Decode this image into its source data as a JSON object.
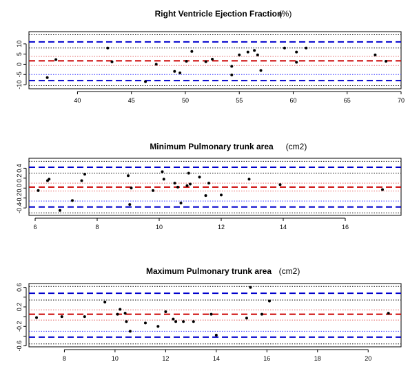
{
  "chart_data": [
    {
      "type": "scatter",
      "title": "Right Ventricle Ejection Fraction",
      "unit": "(%)",
      "xlim": [
        35.5,
        70
      ],
      "ylim": [
        -12,
        16
      ],
      "xticks": [
        40,
        45,
        50,
        55,
        60,
        65,
        70
      ],
      "yticks": [
        -10,
        -5,
        0,
        5,
        10
      ],
      "ytick_labels": [
        "-10",
        "-5",
        "0",
        "5",
        "10"
      ],
      "bias": 1.7,
      "loa": [
        -8.0,
        11.0
      ],
      "bias_ci": [
        -0.6,
        3.9
      ],
      "loa_ci": [
        [
          -10.5,
          -5.0
        ],
        [
          8.0,
          14.5
        ]
      ],
      "points": [
        [
          37.2,
          -6.5
        ],
        [
          38.0,
          2.3
        ],
        [
          42.8,
          8.0
        ],
        [
          43.2,
          1.2
        ],
        [
          46.3,
          -8.5
        ],
        [
          47.3,
          0.0
        ],
        [
          49.0,
          -3.5
        ],
        [
          49.5,
          -4.2
        ],
        [
          50.1,
          1.5
        ],
        [
          50.6,
          6.3
        ],
        [
          51.9,
          1.3
        ],
        [
          52.5,
          2.5
        ],
        [
          54.3,
          -5.2
        ],
        [
          54.3,
          -1.0
        ],
        [
          55.0,
          4.6
        ],
        [
          55.8,
          6.0
        ],
        [
          56.4,
          6.8
        ],
        [
          56.7,
          4.6
        ],
        [
          57.0,
          -3.0
        ],
        [
          59.2,
          8.0
        ],
        [
          60.3,
          6.0
        ],
        [
          60.3,
          1.0
        ],
        [
          61.2,
          8.0
        ],
        [
          67.6,
          4.6
        ],
        [
          68.6,
          1.5
        ]
      ]
    },
    {
      "type": "scatter",
      "title": "Minimum Pulmonary trunk area",
      "unit": "(cm2)",
      "xlim": [
        5.8,
        17.8
      ],
      "ylim": [
        -0.55,
        0.6
      ],
      "xticks": [
        6,
        8,
        10,
        12,
        14,
        16
      ],
      "yticks": [
        -0.4,
        -0.2,
        0.0,
        0.2,
        0.4
      ],
      "ytick_labels": [
        "-0.4",
        "-0.2",
        "0.0",
        "0.2",
        "0.4"
      ],
      "bias": 0.02,
      "loa": [
        -0.38,
        0.42
      ],
      "bias_ci": [
        -0.06,
        0.1
      ],
      "loa_ci": [
        [
          -0.5,
          -0.26
        ],
        [
          0.3,
          0.54
        ]
      ],
      "points": [
        [
          6.1,
          -0.05
        ],
        [
          6.4,
          0.15
        ],
        [
          6.45,
          0.18
        ],
        [
          6.8,
          -0.45
        ],
        [
          7.2,
          -0.25
        ],
        [
          7.5,
          0.15
        ],
        [
          7.6,
          0.28
        ],
        [
          9.0,
          0.25
        ],
        [
          9.05,
          -0.33
        ],
        [
          9.1,
          0.0
        ],
        [
          9.8,
          -0.05
        ],
        [
          10.1,
          0.33
        ],
        [
          10.15,
          0.18
        ],
        [
          10.5,
          0.1
        ],
        [
          10.6,
          0.02
        ],
        [
          10.7,
          -0.3
        ],
        [
          10.9,
          0.05
        ],
        [
          10.95,
          0.3
        ],
        [
          11.0,
          0.08
        ],
        [
          11.3,
          0.22
        ],
        [
          11.5,
          -0.15
        ],
        [
          11.6,
          0.1
        ],
        [
          12.0,
          -0.14
        ],
        [
          12.9,
          0.18
        ],
        [
          13.9,
          0.07
        ],
        [
          17.2,
          -0.03
        ]
      ]
    },
    {
      "type": "scatter",
      "title": "Maximum Pulmonary trunk area",
      "unit": "(cm2)",
      "xlim": [
        6.6,
        21.3
      ],
      "ylim": [
        -0.62,
        0.68
      ],
      "xticks": [
        8,
        10,
        12,
        14,
        16,
        18,
        20
      ],
      "yticks": [
        -0.6,
        -0.4,
        -0.2,
        0.0,
        0.2,
        0.4,
        0.6
      ],
      "ytick_labels": [
        "-0.6",
        "-0.2",
        "0.2",
        "0.6"
      ],
      "bias": 0.05,
      "loa": [
        -0.42,
        0.48
      ],
      "bias_ci": [
        -0.07,
        0.14
      ],
      "loa_ci": [
        [
          -0.56,
          -0.3
        ],
        [
          0.34,
          0.62
        ]
      ],
      "points": [
        [
          6.9,
          -0.02
        ],
        [
          7.9,
          0.0
        ],
        [
          8.8,
          0.0
        ],
        [
          9.6,
          0.3
        ],
        [
          10.1,
          0.05
        ],
        [
          10.2,
          0.15
        ],
        [
          10.4,
          0.07
        ],
        [
          10.45,
          -0.1
        ],
        [
          10.6,
          -0.3
        ],
        [
          11.2,
          -0.13
        ],
        [
          11.7,
          -0.2
        ],
        [
          12.0,
          0.1
        ],
        [
          12.3,
          -0.05
        ],
        [
          12.4,
          -0.1
        ],
        [
          12.7,
          -0.1
        ],
        [
          13.1,
          -0.1
        ],
        [
          13.8,
          0.05
        ],
        [
          14.0,
          -0.38
        ],
        [
          15.2,
          -0.03
        ],
        [
          15.35,
          0.6
        ],
        [
          15.8,
          0.05
        ],
        [
          16.1,
          0.32
        ],
        [
          20.8,
          0.07
        ]
      ]
    }
  ]
}
